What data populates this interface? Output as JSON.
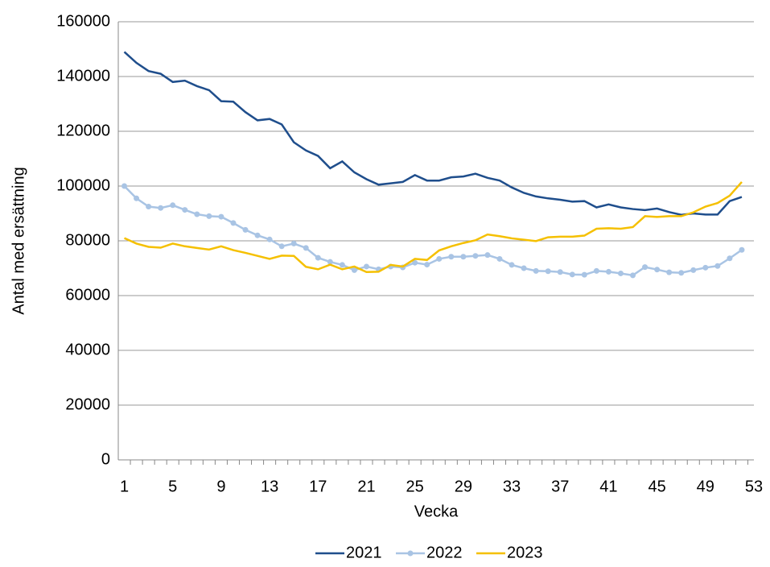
{
  "chart_data": {
    "type": "line",
    "x_label": "Vecka",
    "y_label": "Antal med ersättning",
    "x": [
      1,
      2,
      3,
      4,
      5,
      6,
      7,
      8,
      9,
      10,
      11,
      12,
      13,
      14,
      15,
      16,
      17,
      18,
      19,
      20,
      21,
      22,
      23,
      24,
      25,
      26,
      27,
      28,
      29,
      30,
      31,
      32,
      33,
      34,
      35,
      36,
      37,
      38,
      39,
      40,
      41,
      42,
      43,
      44,
      45,
      46,
      47,
      48,
      49,
      50,
      51,
      52
    ],
    "xlim": [
      0.5,
      53
    ],
    "xticks": [
      1,
      5,
      9,
      13,
      17,
      21,
      25,
      29,
      33,
      37,
      41,
      45,
      49,
      53
    ],
    "ylim": [
      0,
      160000
    ],
    "yticks": [
      0,
      20000,
      40000,
      60000,
      80000,
      100000,
      120000,
      140000,
      160000
    ],
    "grid": true,
    "legend": "bottom",
    "series": [
      {
        "name": "2021",
        "color": "#1f4e8c",
        "marker": "none",
        "values": [
          149000,
          145000,
          142000,
          141000,
          138000,
          138500,
          136500,
          135000,
          131000,
          130800,
          127000,
          124000,
          124500,
          122500,
          116000,
          113000,
          111000,
          106500,
          109000,
          105000,
          102500,
          100500,
          101000,
          101500,
          104000,
          102000,
          102000,
          103200,
          103500,
          104500,
          103000,
          102000,
          99500,
          97500,
          96200,
          95500,
          95000,
          94300,
          94500,
          92200,
          93300,
          92200,
          91600,
          91200,
          91800,
          90500,
          89500,
          90000,
          89600,
          89600,
          94500,
          96000
        ]
      },
      {
        "name": "2022",
        "color": "#a9c4e4",
        "marker": "circle",
        "values": [
          100000,
          95500,
          92500,
          92000,
          93000,
          91300,
          89700,
          89000,
          88800,
          86500,
          84000,
          82000,
          80500,
          78000,
          79000,
          77400,
          73800,
          72300,
          71200,
          69300,
          70600,
          69600,
          70600,
          70300,
          72000,
          71300,
          73400,
          74200,
          74200,
          74500,
          74800,
          73400,
          71200,
          70000,
          69000,
          68900,
          68600,
          67700,
          67600,
          69000,
          68700,
          68100,
          67400,
          70400,
          69500,
          68500,
          68300,
          69300,
          70200,
          70800,
          73600,
          76700
        ]
      },
      {
        "name": "2023",
        "color": "#f5c000",
        "marker": "none",
        "values": [
          81000,
          79000,
          77800,
          77500,
          79000,
          78000,
          77400,
          76800,
          78000,
          76600,
          75600,
          74500,
          73400,
          74600,
          74500,
          70500,
          69600,
          71300,
          69600,
          70600,
          68600,
          68700,
          71200,
          70600,
          73400,
          73000,
          76500,
          78000,
          79200,
          80200,
          82300,
          81700,
          80900,
          80400,
          79900,
          81300,
          81500,
          81500,
          81900,
          84400,
          84600,
          84400,
          85000,
          89000,
          88700,
          89000,
          89000,
          90400,
          92500,
          93800,
          96500,
          101500
        ]
      }
    ]
  }
}
